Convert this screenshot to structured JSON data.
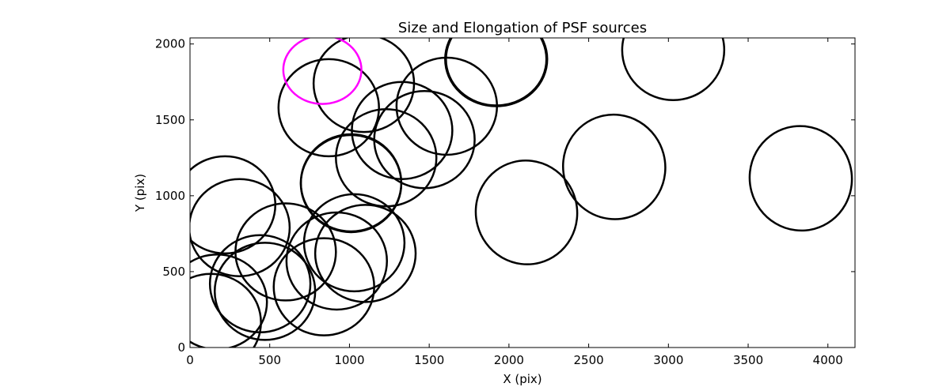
{
  "chart_data": {
    "type": "scatter",
    "title": "Size and Elongation of PSF sources",
    "xlabel": "X (pix)",
    "ylabel": "Y (pix)",
    "xlim": [
      0,
      4170
    ],
    "ylim": [
      0,
      2040
    ],
    "xticks": [
      0,
      500,
      1000,
      1500,
      2000,
      2500,
      3000,
      3500,
      4000
    ],
    "yticks": [
      0,
      500,
      1000,
      1500,
      2000
    ],
    "grid": false,
    "legend": "none",
    "default_color": "#000000",
    "highlight_color": "#ff00ff",
    "ellipses": [
      {
        "x": 130,
        "y": 165,
        "w": 630,
        "h": 640,
        "angle": 0,
        "highlight": false
      },
      {
        "x": 170,
        "y": 300,
        "w": 625,
        "h": 625,
        "angle": 0,
        "highlight": false
      },
      {
        "x": 220,
        "y": 940,
        "w": 630,
        "h": 640,
        "angle": 0,
        "highlight": false
      },
      {
        "x": 310,
        "y": 790,
        "w": 630,
        "h": 640,
        "angle": 0,
        "highlight": false
      },
      {
        "x": 440,
        "y": 420,
        "w": 630,
        "h": 640,
        "angle": 0,
        "highlight": false
      },
      {
        "x": 470,
        "y": 370,
        "w": 630,
        "h": 640,
        "angle": 0,
        "highlight": false
      },
      {
        "x": 600,
        "y": 630,
        "w": 630,
        "h": 640,
        "angle": 0,
        "highlight": false
      },
      {
        "x": 840,
        "y": 400,
        "w": 630,
        "h": 640,
        "angle": 0,
        "highlight": false
      },
      {
        "x": 920,
        "y": 570,
        "w": 630,
        "h": 640,
        "angle": 0,
        "highlight": false
      },
      {
        "x": 1030,
        "y": 690,
        "w": 630,
        "h": 640,
        "angle": 0,
        "highlight": false
      },
      {
        "x": 1100,
        "y": 620,
        "w": 630,
        "h": 640,
        "angle": 0,
        "highlight": false
      },
      {
        "x": 1010,
        "y": 1080,
        "w": 630,
        "h": 640,
        "angle": 0,
        "highlight": false
      },
      {
        "x": 1010,
        "y": 1085,
        "w": 630,
        "h": 640,
        "angle": 0,
        "highlight": false
      },
      {
        "x": 1230,
        "y": 1250,
        "w": 630,
        "h": 640,
        "angle": 0,
        "highlight": false
      },
      {
        "x": 1330,
        "y": 1430,
        "w": 630,
        "h": 640,
        "angle": 0,
        "highlight": false
      },
      {
        "x": 1470,
        "y": 1370,
        "w": 630,
        "h": 640,
        "angle": 0,
        "highlight": false
      },
      {
        "x": 1610,
        "y": 1590,
        "w": 630,
        "h": 640,
        "angle": 0,
        "highlight": false
      },
      {
        "x": 870,
        "y": 1580,
        "w": 630,
        "h": 640,
        "angle": 0,
        "highlight": false
      },
      {
        "x": 1090,
        "y": 1740,
        "w": 630,
        "h": 640,
        "angle": 0,
        "highlight": false
      },
      {
        "x": 830,
        "y": 1830,
        "w": 490,
        "h": 450,
        "angle": 0,
        "highlight": true
      },
      {
        "x": 1920,
        "y": 1900,
        "w": 640,
        "h": 620,
        "angle": 0,
        "highlight": false
      },
      {
        "x": 1920,
        "y": 1900,
        "w": 630,
        "h": 610,
        "angle": 0,
        "highlight": false
      },
      {
        "x": 3030,
        "y": 1960,
        "w": 640,
        "h": 660,
        "angle": 0,
        "highlight": false
      },
      {
        "x": 2110,
        "y": 890,
        "w": 635,
        "h": 685,
        "angle": -15,
        "highlight": false
      },
      {
        "x": 2660,
        "y": 1190,
        "w": 640,
        "h": 690,
        "angle": -15,
        "highlight": false
      },
      {
        "x": 3830,
        "y": 1115,
        "w": 640,
        "h": 690,
        "angle": -15,
        "highlight": false
      }
    ]
  }
}
